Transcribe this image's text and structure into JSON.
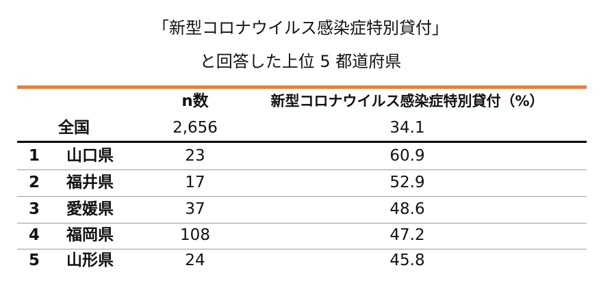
{
  "title": {
    "line1": "「新型コロナウイルス感染症特別貸付」",
    "line2": "と回答した上位 5 都道府県"
  },
  "colors": {
    "accent_rule": "#ED7D31",
    "divider": "#000000"
  },
  "table": {
    "headers": {
      "rank": "",
      "prefecture": "",
      "n": "n数",
      "percent": "新型コロナウイルス感染症特別貸付（%）"
    },
    "national": {
      "label": "全国",
      "n": "2,656",
      "percent": "34.1"
    },
    "rows": [
      {
        "rank": "1",
        "prefecture": "山口県",
        "n": "23",
        "percent": "60.9"
      },
      {
        "rank": "2",
        "prefecture": "福井県",
        "n": "17",
        "percent": "52.9"
      },
      {
        "rank": "3",
        "prefecture": "愛媛県",
        "n": "37",
        "percent": "48.6"
      },
      {
        "rank": "4",
        "prefecture": "福岡県",
        "n": "108",
        "percent": "47.2"
      },
      {
        "rank": "5",
        "prefecture": "山形県",
        "n": "24",
        "percent": "45.8"
      }
    ]
  }
}
